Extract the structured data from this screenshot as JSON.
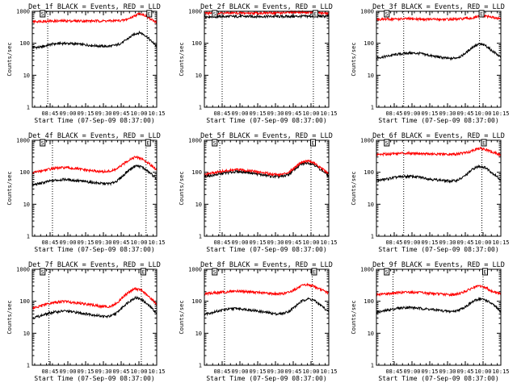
{
  "figure": {
    "colors": {
      "events": "#000000",
      "lld": "#ff0000",
      "axes": "#000000",
      "background": "#ffffff"
    }
  },
  "chart_data": [
    {
      "type": "line",
      "title": "Det 1f BLACK = Events, RED = LLD",
      "xlabel": "Start Time (07-Sep-09 08:37:00)",
      "ylabel": "Counts/sec",
      "x_tick_labels": [
        "08:45",
        "09:00",
        "09:15",
        "09:30",
        "09:45",
        "10:00",
        "10:15"
      ],
      "x_range_minutes": [
        -7,
        98
      ],
      "y_scale": "log",
      "ylim": [
        1,
        1000
      ],
      "y_tick_labels": [
        "1",
        "10",
        "100",
        "1000"
      ],
      "marker_times": [
        "08:43",
        "10:07"
      ],
      "annotation_labels": [
        "S",
        "E"
      ],
      "annotation_times": [
        "08:37",
        "10:07"
      ],
      "series": [
        {
          "name": "Events",
          "color": "#000000",
          "x_minutes": [
            -7,
            0,
            10,
            20,
            30,
            40,
            50,
            55,
            60,
            65,
            70,
            75,
            80,
            84,
            88,
            93,
            98
          ],
          "values": [
            75,
            75,
            95,
            100,
            95,
            88,
            82,
            80,
            82,
            90,
            110,
            150,
            200,
            215,
            180,
            120,
            80
          ]
        },
        {
          "name": "LLD",
          "color": "#ff0000",
          "x_minutes": [
            -7,
            0,
            20,
            40,
            60,
            70,
            75,
            80,
            84,
            88,
            93,
            98
          ],
          "values": [
            480,
            490,
            500,
            500,
            500,
            520,
            600,
            750,
            850,
            750,
            550,
            460
          ]
        }
      ]
    },
    {
      "type": "line",
      "title": "Det 2f BLACK = Events, RED = LLD",
      "xlabel": "Start Time (07-Sep-09 08:37:00)",
      "ylabel": "Counts/sec",
      "x_tick_labels": [
        "08:45",
        "09:00",
        "09:15",
        "09:30",
        "09:45",
        "10:00",
        "10:15"
      ],
      "x_range_minutes": [
        -7,
        98
      ],
      "y_scale": "log",
      "ylim": [
        1,
        1000
      ],
      "y_tick_labels": [
        "1",
        "10",
        "100",
        "1000"
      ],
      "marker_times": [
        "08:45",
        "10:02"
      ],
      "annotation_labels": [
        "S",
        "E"
      ],
      "annotation_times": [
        "08:37",
        "10:02"
      ],
      "series": [
        {
          "name": "Events",
          "color": "#000000",
          "x_minutes": [
            -7,
            20,
            40,
            60,
            80,
            98
          ],
          "values": [
            680,
            690,
            690,
            690,
            700,
            700
          ]
        },
        {
          "name": "LLD",
          "color": "#ff0000",
          "x_minutes": [
            -7,
            20,
            40,
            60,
            75,
            85,
            98
          ],
          "values": [
            880,
            880,
            880,
            900,
            940,
            930,
            860
          ]
        }
      ]
    },
    {
      "type": "line",
      "title": "Det 3f BLACK = Events, RED = LLD",
      "xlabel": "Start Time (07-Sep-09 08:37:00)",
      "ylabel": "Counts/sec",
      "x_tick_labels": [
        "08:45",
        "09:00",
        "09:15",
        "09:30",
        "09:45",
        "10:00",
        "10:15"
      ],
      "x_range_minutes": [
        -7,
        98
      ],
      "y_scale": "log",
      "ylim": [
        1,
        1000
      ],
      "y_tick_labels": [
        "1",
        "10",
        "100",
        "1000"
      ],
      "marker_times": [
        "08:53",
        "09:57"
      ],
      "annotation_labels": [
        "S",
        "E"
      ],
      "annotation_times": [
        "08:37",
        "09:57"
      ],
      "series": [
        {
          "name": "Events",
          "color": "#000000",
          "x_minutes": [
            -7,
            0,
            10,
            20,
            30,
            40,
            50,
            55,
            60,
            65,
            70,
            75,
            80,
            85,
            90,
            98
          ],
          "values": [
            35,
            38,
            45,
            50,
            48,
            40,
            35,
            33,
            35,
            40,
            55,
            80,
            95,
            85,
            60,
            35
          ]
        },
        {
          "name": "LLD",
          "color": "#ff0000",
          "x_minutes": [
            -7,
            20,
            40,
            60,
            75,
            80,
            85,
            90,
            98
          ],
          "values": [
            560,
            580,
            560,
            560,
            620,
            700,
            720,
            650,
            580
          ]
        }
      ]
    },
    {
      "type": "line",
      "title": "Det 4f BLACK = Events, RED = LLD",
      "xlabel": "Start Time (07-Sep-09 08:37:00)",
      "ylabel": "Counts/sec",
      "x_tick_labels": [
        "08:45",
        "09:00",
        "09:15",
        "09:30",
        "09:45",
        "10:00",
        "10:15"
      ],
      "x_range_minutes": [
        -7,
        98
      ],
      "y_scale": "log",
      "ylim": [
        1,
        1000
      ],
      "y_tick_labels": [
        "1",
        "10",
        "100",
        "1000"
      ],
      "marker_times": [
        "08:47",
        "10:06"
      ],
      "annotation_labels": [
        "S",
        "E"
      ],
      "annotation_times": [
        "08:37",
        "10:06"
      ],
      "series": [
        {
          "name": "Events",
          "color": "#000000",
          "x_minutes": [
            -7,
            0,
            10,
            20,
            30,
            40,
            50,
            55,
            60,
            65,
            70,
            75,
            80,
            85,
            90,
            98
          ],
          "values": [
            40,
            45,
            55,
            60,
            55,
            50,
            45,
            44,
            45,
            55,
            80,
            120,
            160,
            150,
            110,
            60
          ]
        },
        {
          "name": "LLD",
          "color": "#ff0000",
          "x_minutes": [
            -7,
            0,
            10,
            20,
            30,
            40,
            50,
            55,
            60,
            65,
            70,
            75,
            80,
            85,
            90,
            98
          ],
          "values": [
            95,
            110,
            130,
            140,
            130,
            115,
            105,
            105,
            110,
            130,
            180,
            250,
            300,
            270,
            200,
            120
          ]
        }
      ]
    },
    {
      "type": "line",
      "title": "Det 5f BLACK = Events, RED = LLD",
      "xlabel": "Start Time (07-Sep-09 08:37:00)",
      "ylabel": "Counts/sec",
      "x_tick_labels": [
        "08:45",
        "09:00",
        "09:15",
        "09:30",
        "09:45",
        "10:00",
        "10:15"
      ],
      "x_range_minutes": [
        -7,
        98
      ],
      "y_scale": "log",
      "ylim": [
        1,
        1000
      ],
      "y_tick_labels": [
        "1",
        "10",
        "100",
        "1000"
      ],
      "marker_times": [
        "08:43",
        "10:00"
      ],
      "annotation_labels": [
        "S",
        "E"
      ],
      "annotation_times": [
        "08:37",
        "10:00"
      ],
      "series": [
        {
          "name": "Events",
          "color": "#000000",
          "x_minutes": [
            -7,
            0,
            10,
            20,
            30,
            40,
            50,
            55,
            60,
            65,
            70,
            75,
            80,
            85,
            90,
            98
          ],
          "values": [
            75,
            80,
            95,
            105,
            100,
            85,
            75,
            72,
            75,
            90,
            130,
            180,
            200,
            180,
            130,
            75
          ]
        },
        {
          "name": "LLD",
          "color": "#ff0000",
          "x_minutes": [
            -7,
            0,
            10,
            20,
            30,
            40,
            50,
            55,
            60,
            65,
            70,
            75,
            80,
            85,
            90,
            98
          ],
          "values": [
            85,
            95,
            110,
            120,
            115,
            100,
            88,
            85,
            88,
            105,
            150,
            210,
            230,
            200,
            145,
            85
          ]
        }
      ]
    },
    {
      "type": "line",
      "title": "Det 6f BLACK = Events, RED = LLD",
      "xlabel": "Start Time (07-Sep-09 08:37:00)",
      "ylabel": "Counts/sec",
      "x_tick_labels": [
        "08:45",
        "09:00",
        "09:15",
        "09:30",
        "09:45",
        "10:00",
        "10:15"
      ],
      "x_range_minutes": [
        -7,
        98
      ],
      "y_scale": "log",
      "ylim": [
        1,
        1000
      ],
      "y_tick_labels": [
        "1",
        "10",
        "100",
        "1000"
      ],
      "marker_times": [
        "08:53",
        "09:59"
      ],
      "annotation_labels": [
        "S",
        "E"
      ],
      "annotation_times": [
        "08:37",
        "09:59"
      ],
      "series": [
        {
          "name": "Events",
          "color": "#000000",
          "x_minutes": [
            -7,
            0,
            10,
            20,
            30,
            40,
            50,
            55,
            60,
            65,
            70,
            75,
            80,
            85,
            90,
            98
          ],
          "values": [
            55,
            60,
            70,
            75,
            70,
            60,
            55,
            53,
            55,
            65,
            90,
            130,
            155,
            140,
            100,
            55
          ]
        },
        {
          "name": "LLD",
          "color": "#ff0000",
          "x_minutes": [
            -7,
            0,
            10,
            20,
            30,
            40,
            50,
            60,
            70,
            75,
            80,
            85,
            90,
            98
          ],
          "values": [
            360,
            370,
            390,
            400,
            390,
            370,
            360,
            370,
            420,
            500,
            560,
            520,
            430,
            350
          ]
        }
      ]
    },
    {
      "type": "line",
      "title": "Det 7f BLACK = Events, RED = LLD",
      "xlabel": "Start Time (07-Sep-09 08:37:00)",
      "ylabel": "Counts/sec",
      "x_tick_labels": [
        "08:45",
        "09:00",
        "09:15",
        "09:30",
        "09:45",
        "10:00",
        "10:15"
      ],
      "x_range_minutes": [
        -7,
        98
      ],
      "y_scale": "log",
      "ylim": [
        1,
        1000
      ],
      "y_tick_labels": [
        "1",
        "10",
        "100",
        "1000"
      ],
      "marker_times": [
        "08:44",
        "10:02"
      ],
      "annotation_labels": [
        "S",
        "E"
      ],
      "annotation_times": [
        "08:37",
        "10:02"
      ],
      "series": [
        {
          "name": "Events",
          "color": "#000000",
          "x_minutes": [
            -7,
            0,
            10,
            20,
            30,
            40,
            50,
            55,
            60,
            65,
            70,
            75,
            80,
            85,
            90,
            98
          ],
          "values": [
            30,
            35,
            45,
            50,
            45,
            40,
            35,
            33,
            35,
            45,
            70,
            100,
            130,
            115,
            80,
            40
          ]
        },
        {
          "name": "LLD",
          "color": "#ff0000",
          "x_minutes": [
            -7,
            0,
            10,
            20,
            30,
            40,
            50,
            55,
            60,
            65,
            70,
            75,
            80,
            85,
            90,
            98
          ],
          "values": [
            60,
            70,
            90,
            100,
            90,
            80,
            70,
            68,
            70,
            90,
            140,
            200,
            250,
            220,
            150,
            80
          ]
        }
      ]
    },
    {
      "type": "line",
      "title": "Det 8f BLACK = Events, RED = LLD",
      "xlabel": "Start Time (07-Sep-09 08:37:00)",
      "ylabel": "Counts/sec",
      "x_tick_labels": [
        "08:45",
        "09:00",
        "09:15",
        "09:30",
        "09:45",
        "10:00",
        "10:15"
      ],
      "x_range_minutes": [
        -7,
        98
      ],
      "y_scale": "log",
      "ylim": [
        1,
        1000
      ],
      "y_tick_labels": [
        "1",
        "10",
        "100",
        "1000"
      ],
      "marker_times": [
        "08:47",
        "10:01"
      ],
      "annotation_labels": [
        "S",
        "E"
      ],
      "annotation_times": [
        "08:37",
        "10:01"
      ],
      "series": [
        {
          "name": "Events",
          "color": "#000000",
          "x_minutes": [
            -7,
            0,
            10,
            20,
            30,
            40,
            50,
            55,
            60,
            65,
            70,
            75,
            80,
            85,
            90,
            98
          ],
          "values": [
            40,
            45,
            55,
            60,
            55,
            48,
            42,
            40,
            42,
            50,
            70,
            100,
            120,
            110,
            80,
            45
          ]
        },
        {
          "name": "LLD",
          "color": "#ff0000",
          "x_minutes": [
            -7,
            0,
            10,
            20,
            30,
            40,
            50,
            55,
            60,
            65,
            70,
            75,
            80,
            85,
            90,
            98
          ],
          "values": [
            170,
            180,
            195,
            210,
            200,
            185,
            175,
            170,
            175,
            195,
            240,
            300,
            330,
            300,
            240,
            180
          ]
        }
      ]
    },
    {
      "type": "line",
      "title": "Det 9f BLACK = Events, RED = LLD",
      "xlabel": "Start Time (07-Sep-09 08:37:00)",
      "ylabel": "Counts/sec",
      "x_tick_labels": [
        "08:45",
        "09:00",
        "09:15",
        "09:30",
        "09:45",
        "10:00",
        "10:15"
      ],
      "x_range_minutes": [
        -7,
        98
      ],
      "y_scale": "log",
      "ylim": [
        1,
        1000
      ],
      "y_tick_labels": [
        "1",
        "10",
        "100",
        "1000"
      ],
      "marker_times": [
        "08:44",
        "10:00"
      ],
      "annotation_labels": [
        "S",
        "E"
      ],
      "annotation_times": [
        "08:37",
        "10:00"
      ],
      "series": [
        {
          "name": "Events",
          "color": "#000000",
          "x_minutes": [
            -7,
            0,
            10,
            20,
            30,
            40,
            50,
            55,
            60,
            65,
            70,
            75,
            80,
            85,
            90,
            98
          ],
          "values": [
            45,
            50,
            60,
            65,
            60,
            55,
            50,
            48,
            50,
            58,
            75,
            100,
            120,
            110,
            85,
            45
          ]
        },
        {
          "name": "LLD",
          "color": "#ff0000",
          "x_minutes": [
            -7,
            0,
            10,
            20,
            30,
            40,
            50,
            55,
            60,
            65,
            70,
            75,
            80,
            85,
            90,
            98
          ],
          "values": [
            160,
            170,
            185,
            195,
            185,
            175,
            165,
            160,
            165,
            185,
            220,
            270,
            300,
            270,
            210,
            170
          ]
        }
      ]
    }
  ]
}
